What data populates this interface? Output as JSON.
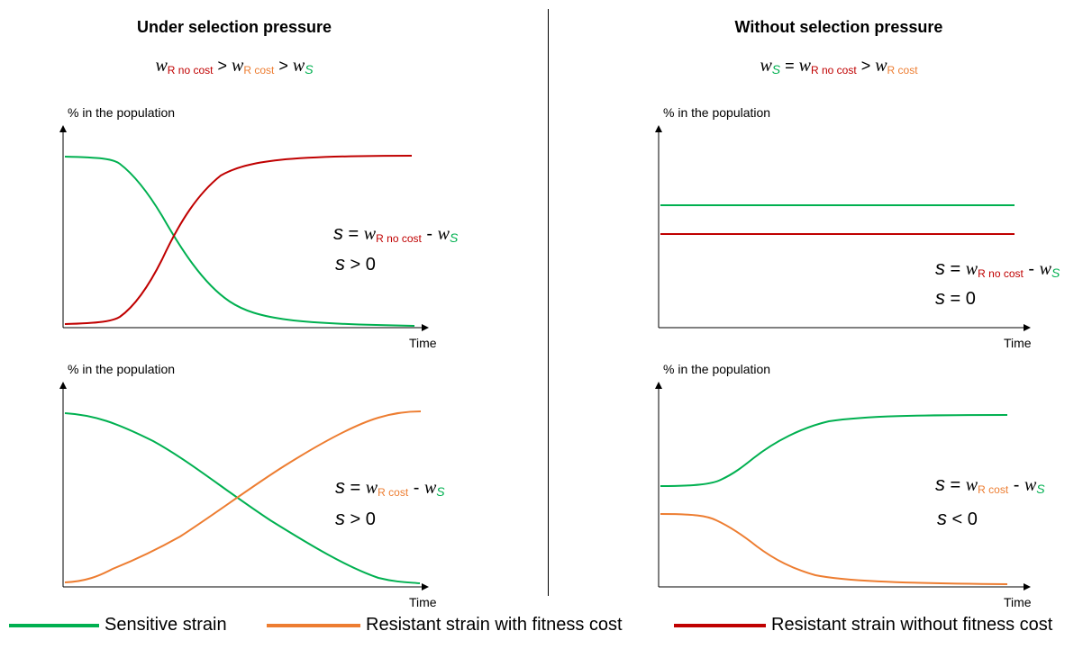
{
  "left": {
    "title": "Under selection pressure",
    "formula": {
      "w1": "w",
      "s1": "R no cost",
      "gt1": " > ",
      "w2": "w",
      "s2": "R cost",
      "gt2": " > ",
      "w3": "w",
      "s3": "S"
    }
  },
  "right": {
    "title": "Without selection pressure",
    "formula": {
      "w1": "w",
      "s1": "S",
      "eq": " = ",
      "w2": "w",
      "s2": "R no cost",
      "gt": " > ",
      "w3": "w",
      "s3": "R cost"
    }
  },
  "panels": {
    "tl": {
      "ylabel": "% in the population",
      "xlabel": "Time",
      "eq1": {
        "s": "s",
        "op": " = ",
        "w1": "w",
        "sub1": "R no cost",
        "minus": " - ",
        "w2": "w",
        "sub2": "S"
      },
      "eq2": {
        "s": "s",
        "rel": " > 0"
      }
    },
    "tr": {
      "ylabel": "% in the population",
      "xlabel": "Time",
      "eq1": {
        "s": "s",
        "op": " = ",
        "w1": "w",
        "sub1": "R no cost",
        "minus": " - ",
        "w2": "w",
        "sub2": "S"
      },
      "eq2": {
        "s": "s",
        "rel": " = 0"
      }
    },
    "bl": {
      "ylabel": "% in the population",
      "xlabel": "Time",
      "eq1": {
        "s": "s",
        "op": " = ",
        "w1": "w",
        "sub1": "R cost",
        "minus": " - ",
        "w2": "w",
        "sub2": "S"
      },
      "eq2": {
        "s": "s",
        "rel": " > 0"
      }
    },
    "br": {
      "ylabel": "% in the population",
      "xlabel": "Time",
      "eq1": {
        "s": "s",
        "op": " = ",
        "w1": "w",
        "sub1": "R cost",
        "minus": " - ",
        "w2": "w",
        "sub2": "S"
      },
      "eq2": {
        "s": "s",
        "rel": " < 0"
      }
    }
  },
  "legend": {
    "sensitive": {
      "label": "Sensitive strain",
      "color": "#00b050"
    },
    "resistant_cost": {
      "label": "Resistant strain with fitness cost",
      "color": "#ed7d31"
    },
    "resistant_no_cost": {
      "label": "Resistant strain without fitness cost",
      "color": "#c00000"
    }
  }
}
